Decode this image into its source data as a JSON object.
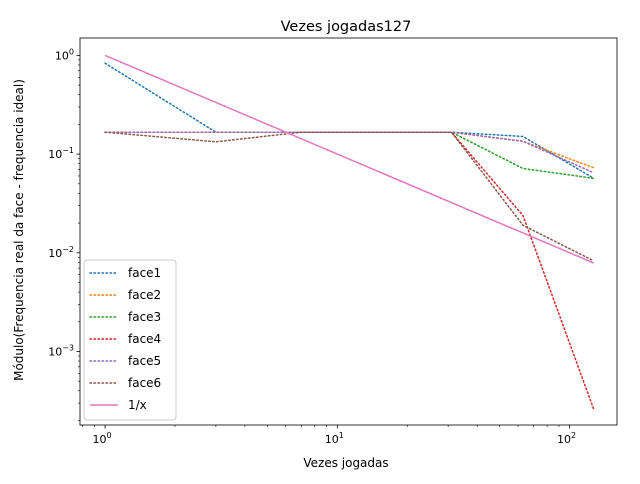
{
  "chart_data": {
    "type": "line",
    "title": "Vezes jogadas127",
    "xlabel": "Vezes jogadas",
    "ylabel": "Módulo(Frequencia real da face - frequencia ideal)",
    "xscale": "log",
    "yscale": "log",
    "xlim": [
      0.78,
      160
    ],
    "ylim": [
      0.00018,
      1.5
    ],
    "xticks": [
      {
        "value": 1,
        "base": "10",
        "exp": "0"
      },
      {
        "value": 10,
        "base": "10",
        "exp": "1"
      },
      {
        "value": 100,
        "base": "10",
        "exp": "2"
      }
    ],
    "yticks": [
      {
        "value": 0.001,
        "base": "10",
        "exp": "−3"
      },
      {
        "value": 0.01,
        "base": "10",
        "exp": "−2"
      },
      {
        "value": 0.1,
        "base": "10",
        "exp": "−1"
      },
      {
        "value": 1,
        "base": "10",
        "exp": "0"
      }
    ],
    "legend_position": "lower-left",
    "series": [
      {
        "name": "face1",
        "color": "#1f77b4",
        "style": "dotted",
        "x": [
          1,
          3,
          7,
          15,
          31,
          63,
          127
        ],
        "y": [
          0.8333,
          0.1667,
          0.1667,
          0.1667,
          0.1667,
          0.1508,
          0.0568
        ]
      },
      {
        "name": "face2",
        "color": "#ff7f0e",
        "style": "dotted",
        "x": [
          1,
          3,
          7,
          15,
          31,
          63,
          127
        ],
        "y": [
          0.1667,
          0.1667,
          0.1667,
          0.1667,
          0.1667,
          0.1349,
          0.0726
        ]
      },
      {
        "name": "face3",
        "color": "#2ca02c",
        "style": "dotted",
        "x": [
          1,
          3,
          7,
          15,
          31,
          63,
          127
        ],
        "y": [
          0.1667,
          0.1667,
          0.1667,
          0.1667,
          0.1667,
          0.0714,
          0.0568
        ]
      },
      {
        "name": "face4",
        "color": "#d62728",
        "style": "dotted",
        "x": [
          1,
          3,
          7,
          15,
          31,
          63,
          127
        ],
        "y": [
          0.1667,
          0.1667,
          0.1667,
          0.1667,
          0.1667,
          0.0238,
          0.00026
        ]
      },
      {
        "name": "face5",
        "color": "#9467bd",
        "style": "dotted",
        "x": [
          1,
          3,
          7,
          15,
          31,
          63,
          127
        ],
        "y": [
          0.1667,
          0.1667,
          0.1667,
          0.1667,
          0.1667,
          0.1349,
          0.0647
        ]
      },
      {
        "name": "face6",
        "color": "#8c564b",
        "style": "dotted",
        "x": [
          1,
          3,
          7,
          15,
          31,
          63,
          127
        ],
        "y": [
          0.1667,
          0.1333,
          0.1667,
          0.1667,
          0.1667,
          0.019,
          0.0083
        ]
      },
      {
        "name": "1/x",
        "color": "#e377c2",
        "style": "solid",
        "x": [
          1,
          127
        ],
        "y": [
          1,
          0.007874
        ]
      }
    ]
  }
}
